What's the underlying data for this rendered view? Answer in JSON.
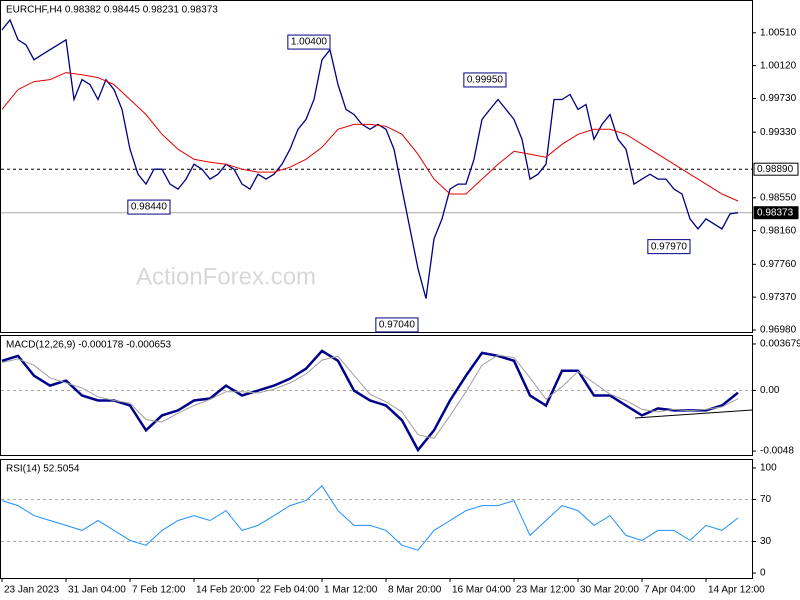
{
  "chart_data": [
    {
      "type": "line",
      "title": "EURCHF,H4 0.98382 0.98445 0.98231 0.98373",
      "watermark": "ActionForex.com",
      "color": "#000080",
      "values": [
        1.00545,
        1.00663,
        1.00427,
        1.00368,
        1.0019,
        1.0025,
        1.00309,
        1.00368,
        1.00427,
        0.99718,
        0.99954,
        0.99895,
        0.99718,
        0.99954,
        0.99836,
        0.996,
        0.99127,
        0.98831,
        0.98713,
        0.9889,
        0.9889,
        0.98713,
        0.98654,
        0.98772,
        0.98949,
        0.9889,
        0.98772,
        0.98831,
        0.98949,
        0.9889,
        0.98713,
        0.98654,
        0.98831,
        0.98772,
        0.98831,
        0.98949,
        0.99127,
        0.99364,
        0.99482,
        0.99718,
        1.0019,
        1.00309,
        0.99895,
        0.996,
        0.9954,
        0.99422,
        0.99364,
        0.99422,
        0.99364,
        0.99127,
        0.98654,
        0.98181,
        0.97708,
        0.97354,
        0.98063,
        0.98299,
        0.98654,
        0.98713,
        0.98713,
        0.99008,
        0.99482,
        0.996,
        0.99718,
        0.996,
        0.99482,
        0.99245,
        0.98772,
        0.98831,
        0.98949,
        0.99718,
        0.99718,
        0.99777,
        0.996,
        0.99659,
        0.99245,
        0.99422,
        0.9954,
        0.99245,
        0.99127,
        0.98713,
        0.98772,
        0.98831,
        0.98772,
        0.98772,
        0.98654,
        0.98595,
        0.98299,
        0.98181,
        0.98299,
        0.9824,
        0.98181,
        0.98359,
        0.98373
      ],
      "ma": {
        "color": "#e00000",
        "x": [
          0,
          2,
          4,
          6,
          8,
          10,
          12,
          14,
          16,
          18,
          20,
          22,
          24,
          26,
          28,
          30,
          32,
          34,
          36,
          38,
          40,
          42,
          44,
          46,
          48,
          50,
          52,
          54,
          56,
          58,
          60,
          62,
          64,
          66,
          68,
          70,
          72,
          74,
          76,
          78,
          80,
          82,
          84,
          86,
          88,
          90,
          92
        ],
        "values": [
          0.996,
          0.99836,
          0.99931,
          0.99954,
          1.00037,
          1.00013,
          0.99978,
          0.99895,
          0.99718,
          0.9954,
          0.99304,
          0.99127,
          0.99008,
          0.98973,
          0.98949,
          0.9889,
          0.98855,
          0.98855,
          0.98914,
          0.99008,
          0.9915,
          0.99364,
          0.99422,
          0.99422,
          0.99399,
          0.99304,
          0.99068,
          0.98772,
          0.98595,
          0.98595,
          0.98772,
          0.98949,
          0.99103,
          0.99068,
          0.99032,
          0.99186,
          0.99304,
          0.99364,
          0.99364,
          0.99304,
          0.99186,
          0.99068,
          0.98949,
          0.98831,
          0.98713,
          0.98595,
          0.98512
        ]
      },
      "xlim": [
        -0.25,
        93.75
      ],
      "ylim": [
        0.96956,
        1.00876
      ],
      "yticks": [
        {
          "value": 1.0051,
          "label": "1.00510"
        },
        {
          "value": 1.0012,
          "label": "1.00120"
        },
        {
          "value": 0.9973,
          "label": "0.99730"
        },
        {
          "value": 0.9933,
          "label": "0.99330"
        },
        {
          "value": 0.9855,
          "label": "0.98550"
        },
        {
          "value": 0.9816,
          "label": "0.98160"
        },
        {
          "value": 0.9776,
          "label": "0.97760"
        },
        {
          "value": 0.9737,
          "label": "0.97370"
        },
        {
          "value": 0.9698,
          "label": "0.96980"
        }
      ],
      "levels": [
        {
          "value": 0.9889,
          "label": "0.98890",
          "style": "dashed"
        },
        {
          "value": 0.98373,
          "label": "0.98373",
          "style": "solid"
        }
      ],
      "annotations": [
        {
          "value": 1.004,
          "label": "1.00400",
          "x": 41
        },
        {
          "value": 0.9995,
          "label": "0.99950",
          "x": 63
        },
        {
          "value": 0.9844,
          "label": "0.98440",
          "x": 21
        },
        {
          "value": 0.9797,
          "label": "0.97970",
          "x": 86
        },
        {
          "value": 0.9704,
          "label": "0.97040",
          "x": 52
        }
      ]
    },
    {
      "type": "line",
      "title": "MACD(12,26,9) -0.000178 -0.000653",
      "x": [
        0,
        2,
        4,
        6,
        8,
        10,
        12,
        14,
        16,
        18,
        20,
        22,
        24,
        26,
        28,
        30,
        32,
        34,
        36,
        38,
        40,
        42,
        44,
        46,
        48,
        50,
        52,
        54,
        56,
        58,
        60,
        62,
        64,
        66,
        68,
        70,
        72,
        74,
        76,
        78,
        80,
        82,
        84,
        86,
        88,
        90,
        92
      ],
      "series": [
        {
          "color": "#00008b",
          "values": [
            0.002344,
            0.002737,
            0.001167,
            0.000382,
            0.000775,
            -0.000403,
            -0.000796,
            -0.000796,
            -0.001188,
            -0.003151,
            -0.001973,
            -0.001581,
            -0.000796,
            -0.000639,
            0.000382,
            -0.000403,
            -1.1e-05,
            0.000382,
            0.000932,
            0.001717,
            0.003129,
            0.002344,
            -1.1e-05,
            -0.000796,
            -0.001188,
            -0.002366,
            -0.004716,
            -0.003151,
            -0.000796,
            0.001167,
            0.002973,
            0.002737,
            0.002344,
            -0.000403,
            -0.001188,
            0.00156,
            0.00156,
            -0.000403,
            -0.000403,
            -0.001188,
            -0.001973,
            -0.001424,
            -0.001581,
            -0.001581,
            -0.001581,
            -0.001188,
            -0.000178
          ]
        },
        {
          "color": "#a0a0a0",
          "values": [
            0.0022,
            0.0025,
            0.002,
            0.001,
            0.0006,
            0.0002,
            -0.0005,
            -0.0008,
            -0.001,
            -0.0023,
            -0.0025,
            -0.0018,
            -0.0012,
            -0.0007,
            -0.0001,
            -0.0001,
            -0.0002,
            0.0001,
            0.0006,
            0.0013,
            0.0024,
            0.0027,
            0.0012,
            -0.0003,
            -0.0009,
            -0.0017,
            -0.0035,
            -0.0038,
            -0.002,
            -0.0001,
            0.002,
            0.0028,
            0.0026,
            0.001,
            -0.0007,
            0.0003,
            0.0015,
            0.0006,
            -0.0003,
            -0.0008,
            -0.0015,
            -0.0017,
            -0.0015,
            -0.0016,
            -0.0015,
            -0.0013,
            -0.000653
          ]
        }
      ],
      "xlim": [
        -0.25,
        93.75
      ],
      "ylim": [
        -0.00511,
        0.00423
      ],
      "yticks": [
        0.003679,
        {
          "value": 0,
          "label": "0.00"
        },
        -0.0048
      ],
      "levels": [
        0
      ]
    },
    {
      "type": "line",
      "title": "RSI(14) 52.5054",
      "color": "#1e90ff",
      "x": [
        0,
        2,
        4,
        6,
        8,
        10,
        12,
        14,
        16,
        18,
        20,
        22,
        24,
        26,
        28,
        30,
        32,
        34,
        36,
        38,
        40,
        42,
        44,
        46,
        48,
        50,
        52,
        54,
        56,
        58,
        60,
        62,
        64,
        66,
        68,
        70,
        72,
        74,
        76,
        78,
        80,
        82,
        84,
        86,
        88,
        90,
        92
      ],
      "values": [
        68.9,
        64.2,
        54.7,
        50.0,
        45.3,
        40.6,
        50.0,
        40.6,
        31.1,
        26.4,
        40.6,
        50.0,
        54.7,
        50.0,
        59.4,
        40.6,
        45.3,
        54.7,
        64.2,
        68.9,
        83.0,
        59.4,
        45.3,
        45.3,
        40.6,
        26.4,
        21.7,
        40.6,
        50.0,
        59.4,
        64.2,
        64.2,
        68.9,
        35.8,
        50.0,
        64.2,
        59.4,
        45.3,
        54.7,
        35.8,
        31.1,
        40.6,
        40.6,
        31.1,
        45.3,
        40.6,
        52.5054
      ],
      "xlim": [
        -0.25,
        93.75
      ],
      "ylim": [
        -4.7,
        106.6
      ],
      "yticks": [
        100,
        70,
        30,
        0
      ],
      "levels": [
        70,
        30
      ],
      "xticks": [
        {
          "value": 0,
          "label": "23 Jan 2023"
        },
        {
          "value": 8,
          "label": "31 Jan 04:00"
        },
        {
          "value": 16,
          "label": "7 Feb 12:00"
        },
        {
          "value": 24,
          "label": "14 Feb 20:00"
        },
        {
          "value": 32,
          "label": "22 Feb 04:00"
        },
        {
          "value": 40,
          "label": "1 Mar 12:00"
        },
        {
          "value": 48,
          "label": "8 Mar 20:00"
        },
        {
          "value": 56,
          "label": "16 Mar 04:00"
        },
        {
          "value": 64,
          "label": "23 Mar 12:00"
        },
        {
          "value": 72,
          "label": "30 Mar 20:00"
        },
        {
          "value": 80,
          "label": "7 Apr 04:00"
        },
        {
          "value": 88,
          "label": "14 Apr 12:00"
        }
      ]
    }
  ]
}
